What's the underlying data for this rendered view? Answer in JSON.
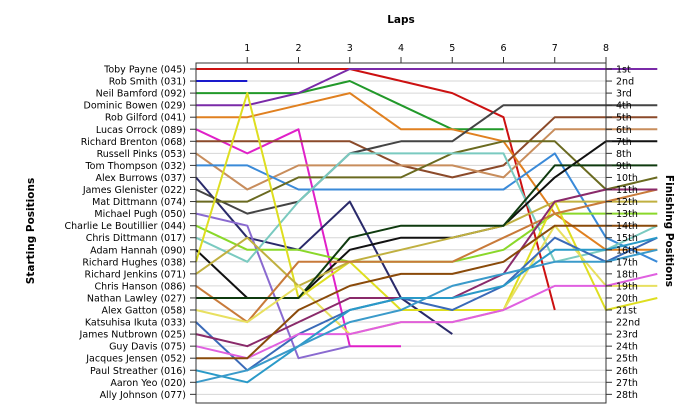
{
  "chart_data": {
    "type": "line",
    "title": "",
    "xlabel": "Laps",
    "ylabel_left": "Starting Positions",
    "ylabel_right": "Finishing Positions",
    "x_ticks": [
      "1",
      "2",
      "3",
      "4",
      "5",
      "6",
      "7",
      "8"
    ],
    "xlim": [
      0,
      8
    ],
    "finishing_labels": [
      "1st",
      "2nd",
      "3rd",
      "4th",
      "5th",
      "6th",
      "7th",
      "8th",
      "9th",
      "10th",
      "11th",
      "12th",
      "13th",
      "14th",
      "15th",
      "16th",
      "17th",
      "18th",
      "19th",
      "20th",
      "21st",
      "22nd",
      "23rd",
      "24th",
      "25th",
      "26th",
      "27th",
      "28th"
    ],
    "grid": "horizontal",
    "series": [
      {
        "name": "Toby Payne (045)",
        "color": "#cc1111",
        "positions": [
          1,
          1,
          1,
          2,
          3,
          5,
          21
        ]
      },
      {
        "name": "Rob Smith (031)",
        "color": "#1a1acc",
        "positions": [
          2
        ]
      },
      {
        "name": "Neil Bamford (092)",
        "color": "#22992a",
        "positions": [
          3,
          3,
          2,
          4,
          6,
          6
        ]
      },
      {
        "name": "Dominic Bowen (029)",
        "color": "#7a2aa8",
        "positions": [
          4,
          3,
          1,
          1,
          1,
          1,
          1,
          1,
          1
        ]
      },
      {
        "name": "Rob Gilford (041)",
        "color": "#e08020",
        "positions": [
          5,
          4,
          3,
          6,
          6,
          7,
          13,
          16,
          16
        ]
      },
      {
        "name": "Lucas Orrock (089)",
        "color": "#e020c8",
        "positions": [
          8,
          6,
          24,
          24
        ]
      },
      {
        "name": "Richard Brenton (068)",
        "color": "#8b4a2a",
        "positions": [
          7,
          7,
          7,
          9,
          10,
          9,
          5,
          5,
          5
        ]
      },
      {
        "name": "Russell Pinks (053)",
        "color": "#c88d5c",
        "positions": [
          11,
          9,
          9,
          9,
          9,
          10,
          6,
          6,
          6
        ]
      },
      {
        "name": "Tom Thompson (032)",
        "color": "#3a8ad8",
        "positions": [
          9,
          11,
          11,
          11,
          11,
          11,
          8,
          15,
          17
        ]
      },
      {
        "name": "Alex Burrows (037)",
        "color": "#2a2a6a",
        "positions": [
          15,
          16,
          12,
          20,
          23
        ]
      },
      {
        "name": "James Glenister (022)",
        "color": "#444444",
        "positions": [
          13,
          12,
          8,
          7,
          7,
          4,
          4,
          4,
          4
        ]
      },
      {
        "name": "Mat Dittmann (074)",
        "color": "#6a6a20",
        "positions": [
          12,
          10,
          10,
          10,
          8,
          7,
          7,
          11,
          10
        ]
      },
      {
        "name": "Michael Pugh (050)",
        "color": "#8a6ad0",
        "positions": [
          14,
          25,
          24
        ]
      },
      {
        "name": "Charlie Le Boutillier (044)",
        "color": "#8ad82a",
        "positions": [
          16,
          16,
          17,
          17,
          17,
          16,
          13,
          13,
          13
        ]
      },
      {
        "name": "Chris Dittmann (017)",
        "color": "#7acac0",
        "positions": [
          17,
          12,
          8,
          8,
          8,
          8,
          17,
          16,
          14
        ]
      },
      {
        "name": "Adam Hannah (090)",
        "color": "#111111",
        "positions": [
          20,
          20,
          16,
          15,
          15,
          14,
          10,
          7,
          7
        ]
      },
      {
        "name": "Richard Hughes (038)",
        "color": "#dede20",
        "positions": [
          3,
          20,
          17,
          21,
          21,
          21,
          12,
          21,
          20
        ]
      },
      {
        "name": "Richard Jenkins (071)",
        "color": "#c0b040",
        "positions": [
          15,
          19,
          17,
          16,
          15,
          14,
          12,
          12,
          12
        ]
      },
      {
        "name": "Chris Hanson (086)",
        "color": "#c87a3a",
        "positions": [
          22,
          17,
          17,
          17,
          17,
          15,
          13,
          12,
          11
        ]
      },
      {
        "name": "Nathan Lawley (027)",
        "color": "#0f3a0f",
        "positions": [
          20,
          20,
          15,
          14,
          14,
          14,
          9,
          9,
          9
        ]
      },
      {
        "name": "Alex Gatton (058)",
        "color": "#e8e060",
        "positions": [
          22,
          19,
          23,
          22,
          22,
          21,
          14,
          19,
          19
        ]
      },
      {
        "name": "Katsuhisa Ikuta (033)",
        "color": "#3a6ab8",
        "positions": [
          26,
          23,
          21,
          20,
          21,
          19,
          15,
          17,
          15
        ]
      },
      {
        "name": "James Nutbrown (025)",
        "color": "#8a2a6a",
        "positions": [
          24,
          22,
          20,
          20,
          20,
          18,
          12,
          11,
          11
        ]
      },
      {
        "name": "Guy Davis (075)",
        "color": "#e060e0",
        "positions": [
          25,
          23,
          23,
          22,
          22,
          21,
          19,
          19,
          18
        ]
      },
      {
        "name": "Jacques Jensen (052)",
        "color": "#8a4a0a",
        "positions": [
          25,
          21,
          19,
          18,
          18,
          17,
          14,
          14,
          14
        ]
      },
      {
        "name": "Paul Streather (016)",
        "color": "#2a9ac8",
        "positions": [
          27,
          24,
          21,
          20,
          20,
          19,
          16,
          16,
          15
        ]
      },
      {
        "name": "Aaron Yeo (020)",
        "color": "#3a9aca",
        "positions": [
          26,
          24,
          22,
          21,
          19,
          18,
          17,
          17,
          16
        ]
      },
      {
        "name": "Ally Johnson (077)",
        "color": "#6a6a9a",
        "positions": []
      }
    ]
  }
}
